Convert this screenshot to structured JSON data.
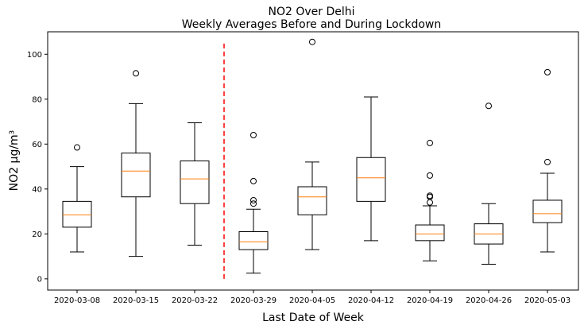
{
  "chart_data": {
    "type": "box",
    "title": "NO2 Over Delhi",
    "subtitle": "Weekly Averages Before and During Lockdown",
    "xlabel": "Last Date of Week",
    "ylabel": "NO2 μg/m³",
    "ylim": [
      -5,
      110
    ],
    "yticks": [
      0,
      20,
      40,
      60,
      80,
      100
    ],
    "grid": false,
    "categories": [
      "2020-03-08",
      "2020-03-15",
      "2020-03-22",
      "2020-03-29",
      "2020-04-05",
      "2020-04-12",
      "2020-04-19",
      "2020-04-26",
      "2020-05-03"
    ],
    "boxes": [
      {
        "whisker_low": 12,
        "q1": 23,
        "median": 28.5,
        "q3": 34.5,
        "whisker_high": 50,
        "outliers": [
          58.5
        ]
      },
      {
        "whisker_low": 10,
        "q1": 36.5,
        "median": 48,
        "q3": 56,
        "whisker_high": 78,
        "outliers": [
          91.5
        ]
      },
      {
        "whisker_low": 15,
        "q1": 33.5,
        "median": 44.5,
        "q3": 52.5,
        "whisker_high": 69.5,
        "outliers": []
      },
      {
        "whisker_low": 2.5,
        "q1": 13,
        "median": 16.5,
        "q3": 21,
        "whisker_high": 31,
        "outliers": [
          33.5,
          35,
          43.5,
          64
        ]
      },
      {
        "whisker_low": 13,
        "q1": 28.5,
        "median": 36.5,
        "q3": 41,
        "whisker_high": 52,
        "outliers": [
          105.5
        ]
      },
      {
        "whisker_low": 17,
        "q1": 34.5,
        "median": 45,
        "q3": 54,
        "whisker_high": 81,
        "outliers": []
      },
      {
        "whisker_low": 8,
        "q1": 17,
        "median": 20,
        "q3": 24,
        "whisker_high": 32.5,
        "outliers": [
          34,
          36.5,
          37,
          46,
          60.5
        ]
      },
      {
        "whisker_low": 6.5,
        "q1": 15.5,
        "median": 20,
        "q3": 24.5,
        "whisker_high": 33.5,
        "outliers": [
          77
        ]
      },
      {
        "whisker_low": 12,
        "q1": 25,
        "median": 29,
        "q3": 35,
        "whisker_high": 47,
        "outliers": [
          52,
          92
        ]
      }
    ],
    "lockdown_line": {
      "x_between": [
        "2020-03-22",
        "2020-03-29"
      ],
      "y_range": [
        0,
        106
      ],
      "color": "#ff0000",
      "style": "dashed"
    },
    "colors": {
      "box": "#000000",
      "median": "#ff7f0e",
      "outlier": "#000000",
      "lockdown": "#ff0000"
    }
  }
}
